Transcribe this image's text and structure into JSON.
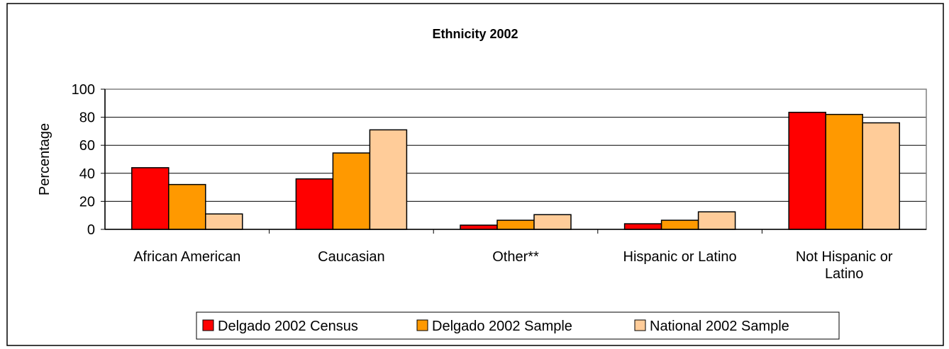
{
  "chart_data": {
    "type": "bar",
    "title": "Ethnicity 2002",
    "ylabel": "Percentage",
    "xlabel": "",
    "ylim": [
      0,
      100
    ],
    "yticks": [
      0,
      20,
      40,
      60,
      80,
      100
    ],
    "grid": true,
    "legend_position": "bottom",
    "categories": [
      [
        "African American"
      ],
      [
        "Caucasian"
      ],
      [
        "Other**"
      ],
      [
        "Hispanic or Latino"
      ],
      [
        "Not Hispanic or",
        "Latino"
      ]
    ],
    "series": [
      {
        "name": "Delgado 2002 Census",
        "color": "#ff0000",
        "values": [
          44,
          36,
          3,
          4,
          83.5
        ]
      },
      {
        "name": "Delgado 2002 Sample",
        "color": "#ff9900",
        "values": [
          32,
          54.5,
          6.5,
          6.5,
          82
        ]
      },
      {
        "name": "National 2002 Sample",
        "color": "#ffcc99",
        "values": [
          11,
          71,
          10.5,
          12.5,
          76
        ]
      }
    ]
  }
}
